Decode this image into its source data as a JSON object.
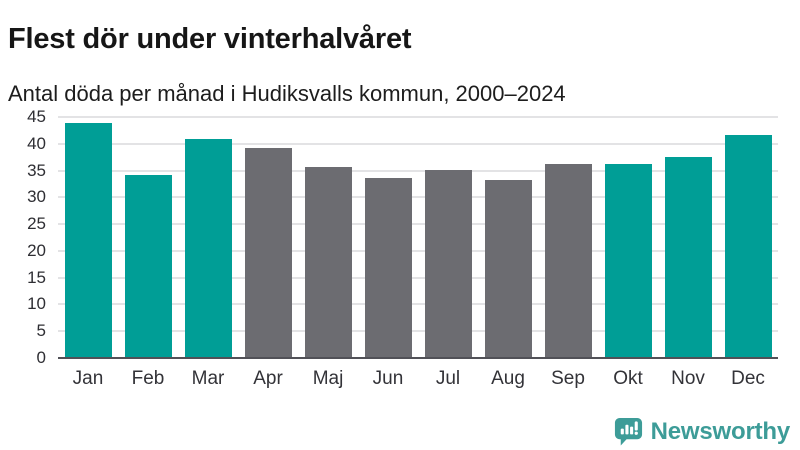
{
  "header": {
    "title": "Flest dör under vinterhalvåret",
    "subtitle": "Antal döda per månad i Hudiksvalls kommun, 2000–2024"
  },
  "chart_data": {
    "type": "bar",
    "title": "Flest dör under vinterhalvåret",
    "subtitle": "Antal döda per månad i Hudiksvalls kommun, 2000–2024",
    "categories": [
      "Jan",
      "Feb",
      "Mar",
      "Apr",
      "Maj",
      "Jun",
      "Jul",
      "Aug",
      "Sep",
      "Okt",
      "Nov",
      "Dec"
    ],
    "values": [
      43.9,
      34.2,
      40.9,
      39.3,
      35.6,
      33.6,
      35.2,
      33.2,
      36.2,
      36.3,
      37.6,
      41.7
    ],
    "highlighted": [
      true,
      true,
      true,
      false,
      false,
      false,
      false,
      false,
      false,
      true,
      true,
      true
    ],
    "colors": {
      "highlight": "#009e96",
      "muted": "#6c6c71"
    },
    "xlabel": "",
    "ylabel": "",
    "ylim": [
      0,
      45
    ],
    "yticks": [
      0,
      5,
      10,
      15,
      20,
      25,
      30,
      35,
      40,
      45
    ],
    "grid": true,
    "legend": "none"
  },
  "footer": {
    "brand": "Newsworthy"
  }
}
